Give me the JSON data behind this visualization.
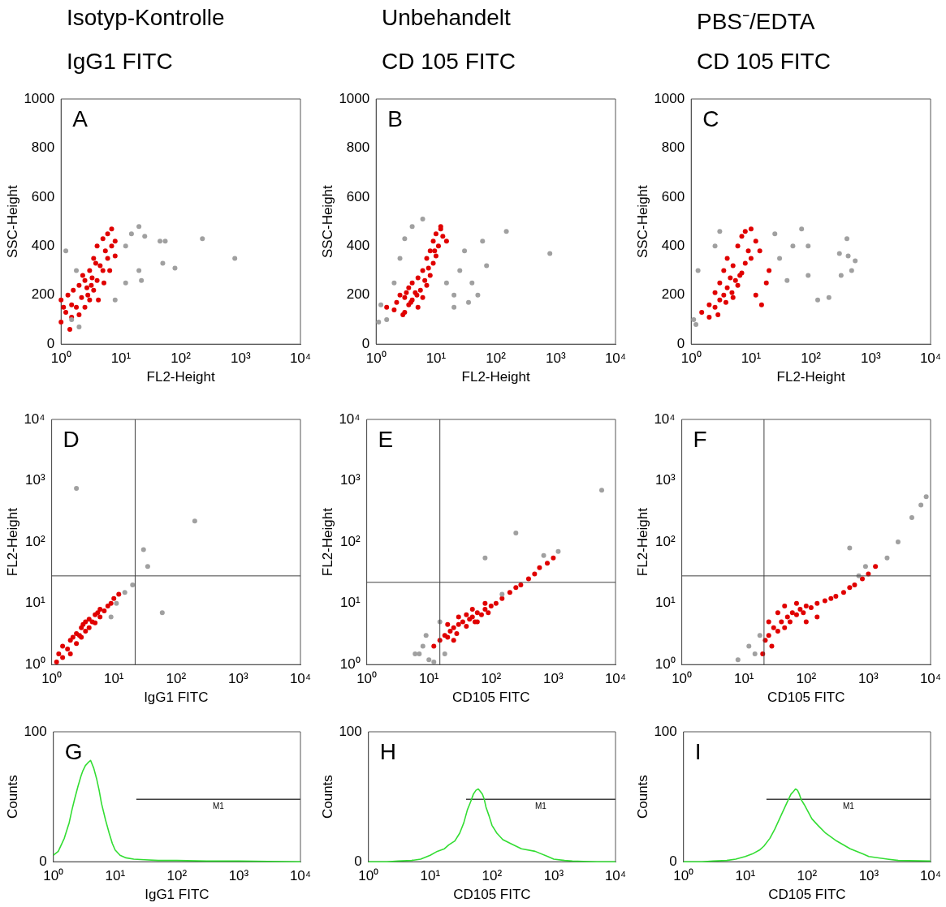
{
  "chart_data": [
    {
      "type": "scatter",
      "title": "Isotyp-Kontrolle",
      "subtitle": "IgG1 FITC",
      "xlabel": "FL2-Height",
      "ylabel": "SSC-Height",
      "annotations": [
        "A"
      ],
      "log": "x",
      "grid": false,
      "legend": false,
      "marker": "circle",
      "xlim": [
        1,
        10000
      ],
      "ylim": [
        0,
        1000
      ],
      "xticks": [
        {
          "value": 1,
          "label": "10⁰"
        },
        {
          "value": 10,
          "label": "10¹"
        },
        {
          "value": 100,
          "label": "10²"
        },
        {
          "value": 1000,
          "label": "10³"
        },
        {
          "value": 10000,
          "label": "10⁴"
        }
      ],
      "yticks": [
        0,
        200,
        400,
        600,
        800,
        1000
      ],
      "series": [
        {
          "color": "#a0a0a0",
          "x": [
            1.2,
            1.5,
            2,
            12,
            15,
            20,
            25,
            45,
            55,
            50,
            80,
            230,
            800,
            12,
            20,
            22,
            8,
            1.8
          ],
          "values": [
            380,
            100,
            70,
            400,
            450,
            480,
            440,
            420,
            420,
            330,
            310,
            430,
            350,
            250,
            300,
            260,
            180,
            300
          ]
        },
        {
          "color": "#e00000",
          "x": [
            1,
            1,
            1.2,
            1.3,
            1.5,
            1.5,
            1.8,
            2,
            2,
            2.2,
            2.5,
            2.5,
            2.8,
            3,
            3,
            3.2,
            3.5,
            3.5,
            4,
            4,
            4.5,
            5,
            5,
            5.5,
            6,
            6,
            7,
            7,
            8,
            8,
            1.1,
            1.6,
            2.3,
            3.8,
            4.2,
            5.2,
            6.5,
            2.7,
            3.3,
            1.4
          ],
          "values": [
            90,
            180,
            130,
            200,
            110,
            160,
            150,
            120,
            240,
            190,
            150,
            260,
            200,
            180,
            300,
            240,
            220,
            350,
            260,
            400,
            320,
            300,
            430,
            380,
            350,
            450,
            400,
            470,
            420,
            360,
            150,
            220,
            280,
            330,
            180,
            250,
            300,
            230,
            270,
            60
          ]
        }
      ]
    },
    {
      "type": "scatter",
      "title": "Unbehandelt",
      "subtitle": "CD 105 FITC",
      "xlabel": "FL2-Height",
      "ylabel": "SSC-Height",
      "annotations": [
        "B"
      ],
      "log": "x",
      "grid": false,
      "legend": false,
      "marker": "circle",
      "xlim": [
        1,
        10000
      ],
      "ylim": [
        0,
        1000
      ],
      "xticks": [
        {
          "value": 1,
          "label": "10⁰"
        },
        {
          "value": 10,
          "label": "10¹"
        },
        {
          "value": 100,
          "label": "10²"
        },
        {
          "value": 1000,
          "label": "10³"
        },
        {
          "value": 10000,
          "label": "10⁴"
        }
      ],
      "yticks": [
        0,
        200,
        400,
        600,
        800,
        1000
      ],
      "series": [
        {
          "color": "#a0a0a0",
          "x": [
            1.2,
            1.5,
            2,
            2.5,
            3,
            4,
            6,
            15,
            20,
            25,
            30,
            40,
            50,
            60,
            70,
            20,
            35,
            150,
            800,
            1.1
          ],
          "values": [
            160,
            100,
            250,
            350,
            430,
            480,
            510,
            250,
            200,
            300,
            380,
            250,
            200,
            420,
            320,
            150,
            170,
            460,
            370,
            90
          ]
        },
        {
          "color": "#e00000",
          "x": [
            1.5,
            2,
            2.2,
            2.5,
            3,
            3,
            3.5,
            3.5,
            4,
            4,
            4.5,
            5,
            5,
            5.5,
            6,
            6,
            7,
            7,
            8,
            8,
            9,
            9,
            10,
            10,
            11,
            12,
            13,
            2.8,
            3.8,
            4.8,
            6.5,
            7.5,
            9.5,
            12,
            15,
            3.2
          ],
          "values": [
            150,
            140,
            170,
            200,
            130,
            190,
            160,
            230,
            180,
            250,
            210,
            150,
            270,
            220,
            190,
            300,
            240,
            350,
            280,
            380,
            330,
            420,
            360,
            450,
            400,
            470,
            440,
            120,
            170,
            200,
            260,
            310,
            380,
            480,
            420,
            210
          ]
        }
      ]
    },
    {
      "type": "scatter",
      "title": "PBS⁻/EDTA",
      "subtitle": "CD 105 FITC",
      "xlabel": "FL2-Height",
      "ylabel": "SSC-Height",
      "annotations": [
        "C"
      ],
      "log": "x",
      "grid": false,
      "legend": false,
      "marker": "circle",
      "xlim": [
        1,
        10000
      ],
      "ylim": [
        0,
        1000
      ],
      "xticks": [
        {
          "value": 1,
          "label": "10⁰"
        },
        {
          "value": 10,
          "label": "10¹"
        },
        {
          "value": 100,
          "label": "10²"
        },
        {
          "value": 1000,
          "label": "10³"
        },
        {
          "value": 10000,
          "label": "10⁴"
        }
      ],
      "yticks": [
        0,
        200,
        400,
        600,
        800,
        1000
      ],
      "series": [
        {
          "color": "#a0a0a0",
          "x": [
            1.1,
            1.3,
            1.2,
            2.5,
            3,
            25,
            30,
            40,
            50,
            70,
            90,
            90,
            130,
            200,
            300,
            320,
            400,
            420,
            480,
            550
          ],
          "values": [
            100,
            300,
            80,
            400,
            460,
            450,
            350,
            260,
            400,
            470,
            280,
            400,
            180,
            190,
            370,
            280,
            430,
            360,
            300,
            340
          ]
        },
        {
          "color": "#e00000",
          "x": [
            1.5,
            2,
            2,
            2.5,
            2.5,
            3,
            3,
            3.5,
            3.5,
            4,
            4,
            4.5,
            5,
            5,
            5.5,
            6,
            6,
            7,
            7,
            8,
            8,
            9,
            10,
            10,
            12,
            2.8,
            3.8,
            4.8,
            6.5,
            12,
            15,
            18,
            20,
            14
          ],
          "values": [
            130,
            110,
            160,
            150,
            210,
            180,
            250,
            200,
            300,
            230,
            350,
            270,
            190,
            320,
            260,
            240,
            400,
            290,
            440,
            330,
            460,
            380,
            350,
            470,
            420,
            120,
            170,
            210,
            280,
            200,
            160,
            250,
            300,
            380
          ]
        }
      ]
    },
    {
      "type": "scatter",
      "xlabel": "IgG1 FITC",
      "ylabel": "FL2-Height",
      "annotations": [
        "D"
      ],
      "log": "xy",
      "grid": false,
      "legend": false,
      "marker": "circle",
      "xlim": [
        1,
        10000
      ],
      "ylim": [
        1,
        10000
      ],
      "xticks": [
        {
          "value": 1,
          "label": "10⁰"
        },
        {
          "value": 10,
          "label": "10¹"
        },
        {
          "value": 100,
          "label": "10²"
        },
        {
          "value": 1000,
          "label": "10³"
        },
        {
          "value": 10000,
          "label": "10⁴"
        }
      ],
      "yticks": [
        {
          "value": 1,
          "label": "10⁰"
        },
        {
          "value": 10,
          "label": "10¹"
        },
        {
          "value": 100,
          "label": "10²"
        },
        {
          "value": 1000,
          "label": "10³"
        },
        {
          "value": 10000,
          "label": "10⁴"
        }
      ],
      "ref_lines": [
        {
          "axis": "x",
          "value": 22,
          "color": "#404040"
        },
        {
          "axis": "y",
          "value": 28,
          "color": "#404040"
        }
      ],
      "series": [
        {
          "color": "#a0a0a0",
          "x": [
            2.5,
            200,
            30,
            35,
            60,
            15,
            20,
            9,
            11
          ],
          "values": [
            750,
            220,
            75,
            40,
            7,
            15,
            20,
            6,
            10
          ]
        },
        {
          "color": "#e00000",
          "x": [
            1.2,
            1.5,
            1.5,
            1.8,
            2,
            2,
            2.5,
            2.5,
            3,
            3,
            3.5,
            3.5,
            4,
            4,
            5,
            5,
            6,
            6,
            7,
            8,
            9,
            10,
            12,
            1.3,
            2.2,
            2.8,
            3.2,
            4.5,
            5.5
          ],
          "values": [
            1.1,
            1.3,
            2,
            1.8,
            1.5,
            2.5,
            2.2,
            3.2,
            2.8,
            4,
            3.5,
            5,
            4,
            5.5,
            4.8,
            6.5,
            6,
            8,
            7.5,
            9,
            10,
            12,
            14,
            1.5,
            2.8,
            3,
            4.5,
            5,
            7
          ]
        }
      ]
    },
    {
      "type": "scatter",
      "xlabel": "CD105 FITC",
      "ylabel": "FL2-Height",
      "annotations": [
        "E"
      ],
      "log": "xy",
      "grid": false,
      "legend": false,
      "marker": "circle",
      "xlim": [
        1,
        10000
      ],
      "ylim": [
        1,
        10000
      ],
      "xticks": [
        {
          "value": 1,
          "label": "10⁰"
        },
        {
          "value": 10,
          "label": "10¹"
        },
        {
          "value": 100,
          "label": "10²"
        },
        {
          "value": 1000,
          "label": "10³"
        },
        {
          "value": 10000,
          "label": "10⁴"
        }
      ],
      "yticks": [
        {
          "value": 1,
          "label": "10⁰"
        },
        {
          "value": 10,
          "label": "10¹"
        },
        {
          "value": 100,
          "label": "10²"
        },
        {
          "value": 1000,
          "label": "10³"
        },
        {
          "value": 10000,
          "label": "10⁴"
        }
      ],
      "ref_lines": [
        {
          "axis": "x",
          "value": 15,
          "color": "#404040"
        },
        {
          "axis": "y",
          "value": 22,
          "color": "#404040"
        }
      ],
      "series": [
        {
          "color": "#a0a0a0",
          "x": [
            8,
            10,
            12,
            9,
            6,
            7,
            15,
            18,
            250,
            80,
            6000,
            700,
            1200,
            150
          ],
          "values": [
            2,
            1.2,
            1.1,
            3,
            1.5,
            1.5,
            5,
            1.5,
            140,
            55,
            700,
            60,
            70,
            14
          ]
        },
        {
          "color": "#e00000",
          "x": [
            12,
            15,
            18,
            20,
            22,
            25,
            28,
            30,
            35,
            40,
            45,
            50,
            55,
            60,
            70,
            80,
            90,
            100,
            120,
            150,
            200,
            250,
            300,
            400,
            500,
            600,
            800,
            1000,
            30,
            40,
            60,
            80,
            25,
            20,
            50
          ],
          "values": [
            2,
            2.5,
            3,
            2.8,
            3.5,
            4,
            3.2,
            4.5,
            5,
            4.2,
            5.5,
            6,
            5,
            7,
            6.5,
            8,
            7,
            9,
            10,
            12,
            15,
            18,
            20,
            25,
            30,
            38,
            45,
            55,
            6,
            6.5,
            5,
            10,
            2.5,
            4.5,
            8
          ]
        }
      ]
    },
    {
      "type": "scatter",
      "xlabel": "CD105 FITC",
      "ylabel": "FL2-Height",
      "annotations": [
        "F"
      ],
      "log": "xy",
      "grid": false,
      "legend": false,
      "marker": "circle",
      "xlim": [
        1,
        10000
      ],
      "ylim": [
        1,
        10000
      ],
      "xticks": [
        {
          "value": 1,
          "label": "10⁰"
        },
        {
          "value": 10,
          "label": "10¹"
        },
        {
          "value": 100,
          "label": "10²"
        },
        {
          "value": 1000,
          "label": "10³"
        },
        {
          "value": 10000,
          "label": "10⁴"
        }
      ],
      "yticks": [
        {
          "value": 1,
          "label": "10⁰"
        },
        {
          "value": 10,
          "label": "10¹"
        },
        {
          "value": 100,
          "label": "10²"
        },
        {
          "value": 1000,
          "label": "10³"
        },
        {
          "value": 10000,
          "label": "10⁴"
        }
      ],
      "ref_lines": [
        {
          "axis": "x",
          "value": 21,
          "color": "#404040"
        },
        {
          "axis": "y",
          "value": 28,
          "color": "#404040"
        }
      ],
      "series": [
        {
          "color": "#a0a0a0",
          "x": [
            8,
            12,
            15,
            18,
            2000,
            3000,
            5000,
            7000,
            8500,
            500,
            900,
            700
          ],
          "values": [
            1.2,
            2,
            1.5,
            3,
            55,
            100,
            250,
            400,
            550,
            80,
            40,
            28
          ]
        },
        {
          "color": "#e00000",
          "x": [
            20,
            22,
            25,
            28,
            30,
            35,
            40,
            45,
            50,
            55,
            60,
            70,
            80,
            90,
            100,
            120,
            150,
            200,
            250,
            300,
            400,
            500,
            600,
            800,
            1000,
            1300,
            35,
            45,
            70,
            100,
            150,
            25
          ],
          "values": [
            1.5,
            2.5,
            3,
            2,
            4,
            3.5,
            5,
            4,
            6,
            5,
            7,
            6.5,
            8,
            7,
            9,
            8.5,
            10,
            11,
            12,
            13,
            15,
            18,
            20,
            25,
            30,
            40,
            7,
            9,
            10,
            5,
            6,
            5
          ]
        }
      ]
    },
    {
      "type": "line",
      "xlabel": "IgG1 FITC",
      "ylabel": "Counts",
      "annotations": [
        "G"
      ],
      "log": "x",
      "grid": false,
      "legend": false,
      "marker": "none",
      "xlim": [
        1,
        10000
      ],
      "ylim": [
        0,
        100
      ],
      "xticks": [
        {
          "value": 1,
          "label": "10⁰"
        },
        {
          "value": 10,
          "label": "10¹"
        },
        {
          "value": 100,
          "label": "10²"
        },
        {
          "value": 1000,
          "label": "10³"
        },
        {
          "value": 10000,
          "label": "10⁴"
        }
      ],
      "yticks": [
        0,
        100
      ],
      "series": [
        {
          "color": "#33dd33",
          "x": [
            1,
            1.2,
            1.5,
            1.8,
            2,
            2.2,
            2.5,
            2.8,
            3,
            3.3,
            3.6,
            4,
            4.5,
            5,
            5.5,
            6,
            7,
            8,
            9,
            10,
            12,
            15,
            20,
            30,
            50,
            100,
            300,
            1000,
            3000,
            10000
          ],
          "values": [
            5,
            8,
            18,
            30,
            40,
            48,
            58,
            66,
            70,
            74,
            76,
            78,
            72,
            64,
            55,
            45,
            32,
            22,
            14,
            9,
            5,
            3,
            2,
            1.5,
            1,
            1,
            0.5,
            0.5,
            0.3,
            0
          ]
        },
        {
          "name": "M1",
          "color": "#404040",
          "x": [
            22,
            10000
          ],
          "values": [
            48,
            48
          ]
        }
      ]
    },
    {
      "type": "line",
      "xlabel": "CD105 FITC",
      "ylabel": "Counts",
      "annotations": [
        "H"
      ],
      "log": "x",
      "grid": false,
      "legend": false,
      "marker": "none",
      "xlim": [
        1,
        10000
      ],
      "ylim": [
        0,
        100
      ],
      "xticks": [
        {
          "value": 1,
          "label": "10⁰"
        },
        {
          "value": 10,
          "label": "10¹"
        },
        {
          "value": 100,
          "label": "10²"
        },
        {
          "value": 1000,
          "label": "10³"
        },
        {
          "value": 10000,
          "label": "10⁴"
        }
      ],
      "yticks": [
        0,
        100
      ],
      "series": [
        {
          "color": "#33dd33",
          "x": [
            1,
            2,
            3,
            5,
            7,
            10,
            13,
            17,
            20,
            25,
            30,
            35,
            40,
            45,
            50,
            55,
            60,
            65,
            70,
            75,
            80,
            90,
            100,
            120,
            150,
            200,
            300,
            500,
            800,
            1000,
            1500,
            2000,
            3000,
            5000,
            10000
          ],
          "values": [
            0,
            0,
            0.5,
            1,
            2,
            5,
            8,
            10,
            13,
            16,
            22,
            30,
            40,
            46,
            52,
            55,
            56,
            54,
            52,
            48,
            42,
            35,
            28,
            22,
            17,
            14,
            10,
            8,
            4,
            2,
            1,
            0.5,
            0.3,
            0,
            0
          ]
        },
        {
          "name": "M1",
          "color": "#404040",
          "x": [
            38,
            10000
          ],
          "values": [
            48,
            48
          ]
        }
      ]
    },
    {
      "type": "line",
      "xlabel": "CD105 FITC",
      "ylabel": "Counts",
      "annotations": [
        "I"
      ],
      "log": "x",
      "grid": false,
      "legend": false,
      "marker": "none",
      "xlim": [
        1,
        10000
      ],
      "ylim": [
        0,
        100
      ],
      "xticks": [
        {
          "value": 1,
          "label": "10⁰"
        },
        {
          "value": 10,
          "label": "10¹"
        },
        {
          "value": 100,
          "label": "10²"
        },
        {
          "value": 1000,
          "label": "10³"
        },
        {
          "value": 10000,
          "label": "10⁴"
        }
      ],
      "yticks": [
        0,
        100
      ],
      "series": [
        {
          "color": "#33dd33",
          "x": [
            1,
            2,
            3,
            5,
            7,
            10,
            13,
            17,
            20,
            25,
            30,
            40,
            50,
            55,
            60,
            65,
            70,
            75,
            80,
            90,
            100,
            120,
            150,
            200,
            300,
            500,
            800,
            1000,
            2000,
            3000,
            10000
          ],
          "values": [
            0,
            0,
            0.5,
            1,
            2,
            4,
            6,
            9,
            12,
            18,
            25,
            38,
            48,
            52,
            54,
            56,
            55,
            52,
            48,
            44,
            40,
            33,
            28,
            22,
            16,
            10,
            6,
            4,
            2,
            1,
            0.5
          ]
        },
        {
          "name": "M1",
          "color": "#404040",
          "x": [
            22,
            10000
          ],
          "values": [
            48,
            48
          ]
        }
      ]
    }
  ]
}
